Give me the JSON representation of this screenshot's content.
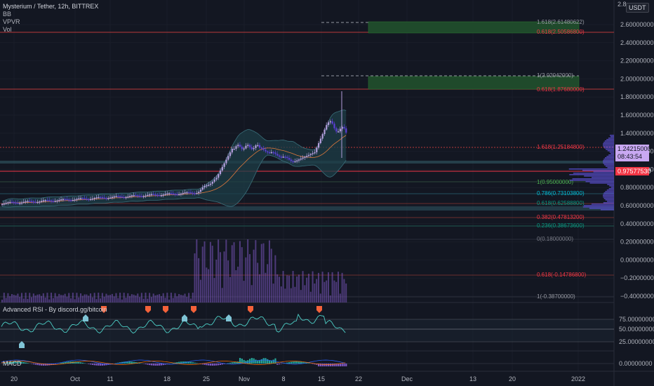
{
  "legend": {
    "title": "Mysterium / Tether, 12h, BITTREX",
    "indicators": [
      "BB",
      "VPVR",
      "Vol"
    ]
  },
  "currency_badge": "USDT",
  "top_axis_label": "2.8",
  "price_axis": {
    "labels": [
      "2.60000000",
      "2.40000000",
      "2.20000000",
      "2.00000000",
      "1.80000000",
      "1.60000000",
      "1.40000000",
      "1.20000000",
      "1.00000000",
      "0.80000000",
      "0.60000000",
      "0.40000000",
      "0.20000000",
      "0.00000000",
      "−0.20000000",
      "−0.40000000"
    ]
  },
  "current_price": {
    "value": "1.24215000",
    "countdown": "08:43:54"
  },
  "alert_price": "0.97577530",
  "fib_levels": [
    {
      "label": "1.618(2.61480622)",
      "color": "#9598a1"
    },
    {
      "label": "0.618(2.50586800)",
      "color": "#f23645"
    },
    {
      "label": "1(2.02042000)",
      "color": "#9598a1"
    },
    {
      "label": "0.618(1.87680000)",
      "color": "#f23645"
    },
    {
      "label": "1.618(1.25184800)",
      "color": "#f23645"
    },
    {
      "label": "1(0.95000000)",
      "color": "#4caf50"
    },
    {
      "label": "0.786(0.73103800)",
      "color": "#00bcd4"
    },
    {
      "label": "0.618(0.62588800)",
      "color": "#089981"
    },
    {
      "label": "0.382(0.47813200)",
      "color": "#f23645"
    },
    {
      "label": "0.236(0.38673600)",
      "color": "#089981"
    },
    {
      "label": "0(0.18000000)",
      "color": "#787b86"
    },
    {
      "label": "0.618(-0.14786800)",
      "color": "#f23645"
    },
    {
      "label": "1(-0.38700000)",
      "color": "#9598a1"
    }
  ],
  "rsi_pane": {
    "label": "Advanced RSI - By discord.gg/bitcoin",
    "axis": [
      "75.00000000",
      "50.00000000",
      "25.00000000"
    ]
  },
  "macd_pane": {
    "label": "MACD",
    "axis": [
      "0.00000000"
    ]
  },
  "time_axis": {
    "labels": [
      "20",
      "Oct",
      "11",
      "18",
      "25",
      "Nov",
      "8",
      "15",
      "22",
      "Dec",
      "13",
      "20",
      "2022"
    ]
  },
  "colors": {
    "background": "#131722",
    "candle": "#b39ddb",
    "candle_down": "#5b3fd6",
    "volume": "#7e57c2",
    "bb_fill": "#1e3d47",
    "rsi_line": "#4dd0c7",
    "macd_up": "#26a69a",
    "macd_down": "#7e57c2"
  }
}
